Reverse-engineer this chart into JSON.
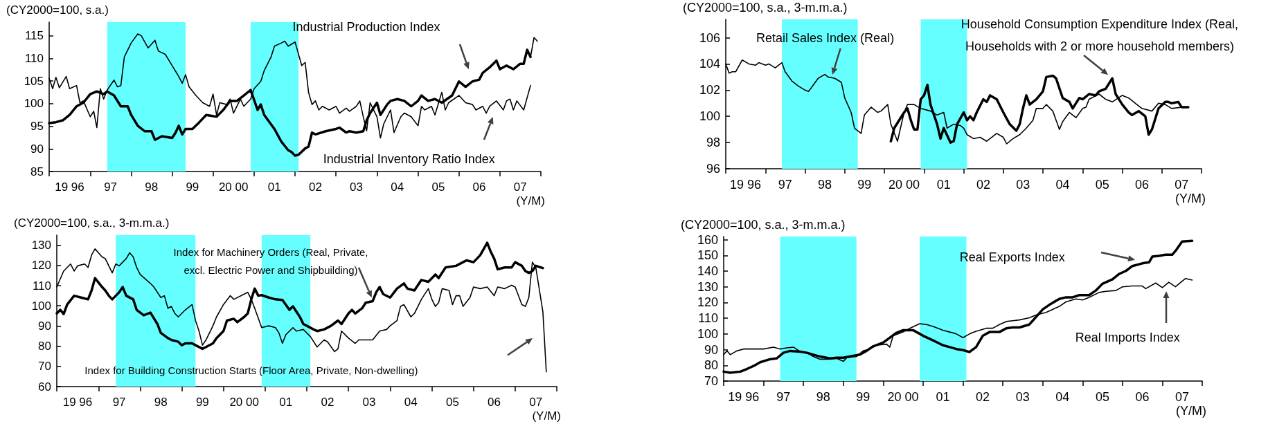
{
  "chart_data": [
    {
      "type": "line",
      "ylabel": "(CY2000=100, s.a.)",
      "xlabel": "(Y/M)",
      "xlim": [
        "1996-01",
        "2008-01"
      ],
      "ylim": [
        85,
        118
      ],
      "yticks": [
        85,
        90,
        95,
        100,
        105,
        110,
        115
      ],
      "xticks": [
        {
          "value": "1996-01",
          "label": null
        },
        {
          "value": "1996-07",
          "label": "19 96"
        },
        {
          "value": "1997-01",
          "label": null
        },
        {
          "value": "1997-07",
          "label": "97"
        },
        {
          "value": "1998-01",
          "label": null
        },
        {
          "value": "1998-07",
          "label": "98"
        },
        {
          "value": "1999-01",
          "label": null
        },
        {
          "value": "1999-07",
          "label": "99"
        },
        {
          "value": "2000-01",
          "label": null
        },
        {
          "value": "2000-07",
          "label": "20 00"
        },
        {
          "value": "2001-01",
          "label": null
        },
        {
          "value": "2001-07",
          "label": "01"
        },
        {
          "value": "2002-01",
          "label": null
        },
        {
          "value": "2002-07",
          "label": "02"
        },
        {
          "value": "2003-01",
          "label": null
        },
        {
          "value": "2003-07",
          "label": "03"
        },
        {
          "value": "2004-01",
          "label": null
        },
        {
          "value": "2004-07",
          "label": "04"
        },
        {
          "value": "2005-01",
          "label": null
        },
        {
          "value": "2005-07",
          "label": "05"
        },
        {
          "value": "2006-01",
          "label": null
        },
        {
          "value": "2006-07",
          "label": "06"
        },
        {
          "value": "2007-01",
          "label": null
        },
        {
          "value": "2007-07",
          "label": "07"
        },
        {
          "value": "2008-01",
          "label": null
        }
      ],
      "grid": false,
      "marker": "none",
      "line_style": "solid",
      "bands": [
        {
          "axis": "x",
          "from": "1997-06",
          "to": "1999-05",
          "color": "#66ffff"
        },
        {
          "axis": "x",
          "from": "2000-12",
          "to": "2002-02",
          "color": "#66ffff"
        }
      ],
      "annotations": [
        "Industrial Production Index",
        "Industrial Inventory Ratio Index"
      ],
      "series": [
        {
          "color": "#000000",
          "x": [
            "1996-01",
            "1996-03",
            "1996-05",
            "1996-07",
            "1996-09",
            "1996-11",
            "1997-01",
            "1997-03",
            "1997-05",
            "1997-06",
            "1997-08",
            "1997-10",
            "1997-12",
            "1998-01",
            "1998-03",
            "1998-05",
            "1998-07",
            "1998-08",
            "1998-10",
            "1999-01",
            "1999-02",
            "1999-03",
            "1999-04",
            "1999-05",
            "1999-07",
            "1999-09",
            "1999-11",
            "2000-02",
            "2000-04",
            "2000-06",
            "2000-08",
            "2000-10",
            "2000-12",
            "2001-02",
            "2001-03",
            "2001-04",
            "2001-07",
            "2001-09",
            "2001-11",
            "2001-12",
            "2002-01",
            "2002-02",
            "2002-04",
            "2002-05",
            "2002-06",
            "2002-07",
            "2002-10",
            "2003-01",
            "2003-02",
            "2003-04",
            "2003-05",
            "2003-07",
            "2003-09",
            "2003-10",
            "2003-11",
            "2004-01",
            "2004-02",
            "2004-04",
            "2004-05",
            "2004-07",
            "2004-09",
            "2004-11",
            "2005-01",
            "2005-02",
            "2005-04",
            "2005-06",
            "2005-08",
            "2005-11",
            "2006-01",
            "2006-03",
            "2006-05",
            "2006-07",
            "2006-08",
            "2006-10",
            "2006-12",
            "2007-01",
            "2007-03",
            "2007-05",
            "2007-07",
            "2007-08",
            "2007-09",
            "2007-10"
          ],
          "values": [
            95.7,
            95.9,
            96.3,
            97.5,
            99.4,
            100.2,
            102.1,
            102.7,
            102.1,
            102.7,
            101.8,
            99.4,
            99.4,
            97.5,
            95.1,
            93.9,
            93.9,
            92.0,
            92.8,
            92.4,
            93.6,
            95.1,
            93.2,
            94.4,
            94.4,
            95.9,
            97.5,
            97.1,
            98.6,
            100.6,
            100.6,
            101.8,
            103.0,
            98.6,
            99.8,
            97.5,
            94.4,
            91.6,
            89.7,
            89.3,
            88.5,
            88.7,
            90.1,
            90.5,
            93.6,
            93.2,
            93.9,
            94.4,
            94.7,
            93.6,
            93.9,
            93.6,
            93.9,
            96.3,
            97.9,
            100.2,
            97.5,
            99.8,
            100.6,
            101.0,
            100.6,
            99.4,
            100.6,
            101.8,
            100.6,
            101.0,
            100.2,
            101.8,
            104.9,
            103.7,
            104.9,
            105.3,
            106.8,
            108.0,
            109.5,
            107.6,
            108.4,
            107.6,
            108.8,
            108.8,
            111.9,
            110.3
          ]
        },
        {
          "color": "#000000",
          "x": [
            "1996-01",
            "1996-02",
            "1996-03",
            "1996-04",
            "1996-06",
            "1996-07",
            "1996-09",
            "1996-10",
            "1996-11",
            "1997-01",
            "1997-02",
            "1997-03",
            "1997-04",
            "1997-05",
            "1997-06",
            "1997-08",
            "1997-09",
            "1997-10",
            "1997-11",
            "1998-01",
            "1998-03",
            "1998-04",
            "1998-06",
            "1998-08",
            "1998-09",
            "1998-11",
            "1999-01",
            "1999-03",
            "1999-04",
            "1999-05",
            "1999-06",
            "1999-08",
            "1999-10",
            "1999-12",
            "2000-01",
            "2000-02",
            "2000-03",
            "2000-05",
            "2000-06",
            "2000-07",
            "2000-09",
            "2000-10",
            "2000-12",
            "2001-01",
            "2001-03",
            "2001-04",
            "2001-06",
            "2001-07",
            "2001-09",
            "2001-10",
            "2001-11",
            "2002-01",
            "2002-02",
            "2002-03",
            "2002-04",
            "2002-05",
            "2002-06",
            "2002-07",
            "2002-08",
            "2002-09",
            "2002-11",
            "2003-01",
            "2003-02",
            "2003-04",
            "2003-05",
            "2003-07",
            "2003-08",
            "2003-09",
            "2003-10",
            "2003-11",
            "2004-01",
            "2004-02",
            "2004-03",
            "2004-05",
            "2004-06",
            "2004-08",
            "2004-09",
            "2004-11",
            "2005-01",
            "2005-02",
            "2005-03",
            "2005-05",
            "2005-06",
            "2005-08",
            "2005-09",
            "2005-10",
            "2006-01",
            "2006-03",
            "2006-05",
            "2006-06",
            "2006-08",
            "2006-09",
            "2006-10",
            "2006-12",
            "2007-02",
            "2007-03",
            "2007-04",
            "2007-05",
            "2007-06",
            "2007-08",
            "2007-10"
          ],
          "values": [
            105.6,
            103.3,
            105.8,
            103.5,
            106.0,
            103.3,
            104.0,
            100.2,
            100.6,
            97.1,
            98.3,
            94.7,
            103.3,
            101.0,
            103.0,
            105.2,
            103.7,
            104.0,
            110.3,
            113.4,
            115.4,
            115.0,
            112.3,
            114.0,
            111.6,
            110.9,
            108.4,
            106.0,
            104.5,
            106.4,
            103.7,
            101.8,
            100.2,
            99.4,
            102.1,
            97.5,
            100.2,
            99.8,
            101.0,
            97.9,
            101.0,
            99.4,
            101.0,
            103.3,
            104.9,
            107.3,
            110.3,
            112.7,
            113.4,
            113.8,
            112.7,
            113.6,
            110.9,
            108.4,
            109.1,
            102.5,
            99.8,
            100.6,
            98.6,
            99.4,
            98.6,
            99.4,
            97.9,
            99.0,
            98.3,
            99.4,
            100.6,
            97.1,
            94.0,
            100.2,
            97.1,
            92.4,
            95.5,
            98.6,
            93.6,
            97.1,
            97.9,
            97.1,
            95.1,
            99.4,
            98.6,
            99.4,
            97.5,
            102.5,
            98.6,
            100.2,
            101.8,
            100.2,
            99.8,
            98.6,
            99.4,
            97.9,
            99.4,
            100.6,
            98.6,
            100.6,
            101.0,
            98.6,
            100.6,
            98.6,
            104.0
          ]
        },
        {
          "color": "#000000",
          "x": [
            "2007-10",
            "2007-11",
            "2007-12"
          ],
          "values": [
            110.3,
            114.6,
            113.8
          ]
        }
      ]
    },
    {
      "type": "line",
      "ylabel": "(CY2000=100, s.a., 3-m.m.a.)",
      "xlabel": "(Y/M)",
      "xlim": [
        "1996-01",
        "2008-01"
      ],
      "ylim": [
        96,
        107.4
      ],
      "yticks": [
        96,
        98,
        100,
        102,
        104,
        106
      ],
      "xticks": [
        {
          "value": "1996-01",
          "label": null
        },
        {
          "value": "1996-07",
          "label": "19 96"
        },
        {
          "value": "1997-01",
          "label": null
        },
        {
          "value": "1997-07",
          "label": "97"
        },
        {
          "value": "1998-01",
          "label": null
        },
        {
          "value": "1998-07",
          "label": "98"
        },
        {
          "value": "1999-01",
          "label": null
        },
        {
          "value": "1999-07",
          "label": "99"
        },
        {
          "value": "2000-01",
          "label": null
        },
        {
          "value": "2000-07",
          "label": "20 00"
        },
        {
          "value": "2001-01",
          "label": null
        },
        {
          "value": "2001-07",
          "label": "01"
        },
        {
          "value": "2002-01",
          "label": null
        },
        {
          "value": "2002-07",
          "label": "02"
        },
        {
          "value": "2003-01",
          "label": null
        },
        {
          "value": "2003-07",
          "label": "03"
        },
        {
          "value": "2004-01",
          "label": null
        },
        {
          "value": "2004-07",
          "label": "04"
        },
        {
          "value": "2005-01",
          "label": null
        },
        {
          "value": "2005-07",
          "label": "05"
        },
        {
          "value": "2006-01",
          "label": null
        },
        {
          "value": "2006-07",
          "label": "06"
        },
        {
          "value": "2007-01",
          "label": null
        },
        {
          "value": "2007-07",
          "label": "07"
        },
        {
          "value": "2008-01",
          "label": null
        }
      ],
      "grid": false,
      "marker": "none",
      "line_style": "solid",
      "bands": [
        {
          "axis": "x",
          "from": "1997-06",
          "to": "1999-05",
          "color": "#66ffff"
        },
        {
          "axis": "x",
          "from": "2000-12",
          "to": "2002-02",
          "color": "#66ffff"
        }
      ],
      "annotations": [
        "Retail Sales Index (Real)",
        "Household Consumption Expenditure Index (Real,\nHouseholds with 2 or more household members)"
      ],
      "series": [
        {
          "color": "#000000",
          "x": [
            "2000-03",
            "2000-04",
            "2000-07",
            "2000-08",
            "2000-09",
            "2000-10",
            "2000-11",
            "2000-12",
            "2001-01",
            "2001-02",
            "2001-03",
            "2001-05",
            "2001-06",
            "2001-07",
            "2001-09",
            "2001-10",
            "2001-11",
            "2002-01",
            "2002-02",
            "2002-03",
            "2002-04",
            "2002-05",
            "2002-07",
            "2002-08",
            "2002-09",
            "2002-11",
            "2003-01",
            "2003-03",
            "2003-05",
            "2003-06",
            "2003-07",
            "2003-08",
            "2003-09",
            "2003-11",
            "2004-01",
            "2004-02",
            "2004-04",
            "2004-05",
            "2004-07",
            "2004-09",
            "2004-10",
            "2004-12",
            "2005-01",
            "2005-03",
            "2005-05",
            "2005-06",
            "2005-08",
            "2005-10",
            "2005-11",
            "2006-01",
            "2006-03",
            "2006-04",
            "2006-06",
            "2006-08",
            "2006-09",
            "2006-10",
            "2006-12",
            "2007-02",
            "2007-03",
            "2007-04",
            "2007-06",
            "2007-07",
            "2007-09"
          ],
          "values": [
            98.1,
            99.1,
            100.3,
            100.6,
            99.7,
            99.0,
            99.0,
            101.3,
            101.6,
            102.4,
            100.9,
            99.4,
            98.3,
            99.1,
            98.0,
            98.1,
            99.4,
            100.3,
            99.7,
            100.0,
            99.7,
            100.3,
            101.3,
            101.1,
            101.6,
            101.3,
            100.3,
            99.4,
            98.9,
            99.4,
            100.6,
            101.6,
            100.9,
            101.3,
            101.9,
            103.0,
            103.1,
            102.9,
            101.4,
            101.1,
            100.6,
            101.4,
            101.3,
            101.7,
            101.6,
            101.9,
            102.1,
            102.9,
            101.7,
            100.9,
            100.3,
            100.1,
            100.4,
            100.0,
            98.6,
            99.0,
            100.6,
            101.1,
            101.1,
            101.0,
            101.1,
            100.7,
            100.7
          ]
        },
        {
          "color": "#000000",
          "x": [
            "1996-01",
            "1996-02",
            "1996-03",
            "1996-04",
            "1996-06",
            "1996-08",
            "1996-10",
            "1996-11",
            "1997-01",
            "1997-02",
            "1997-04",
            "1997-05",
            "1997-06",
            "1997-07",
            "1997-09",
            "1997-11",
            "1998-01",
            "1998-02",
            "1998-03",
            "1998-05",
            "1998-07",
            "1998-08",
            "1998-10",
            "1998-12",
            "1999-01",
            "1999-03",
            "1999-04",
            "1999-06",
            "1999-07",
            "1999-09",
            "1999-11",
            "1999-12",
            "2000-02",
            "2000-03",
            "2000-05",
            "2000-07",
            "2000-08",
            "2000-10",
            "2000-12",
            "2001-03",
            "2001-05",
            "2001-07",
            "2001-08",
            "2001-10",
            "2001-12",
            "2002-01",
            "2002-02",
            "2002-04",
            "2002-06",
            "2002-08",
            "2002-09",
            "2002-11",
            "2003-01",
            "2003-02",
            "2003-04",
            "2003-06",
            "2003-08",
            "2003-10",
            "2003-11",
            "2004-01",
            "2004-02",
            "2004-04",
            "2004-06",
            "2004-07",
            "2004-09",
            "2004-11",
            "2005-01",
            "2005-02",
            "2005-03",
            "2005-06",
            "2005-08",
            "2005-10",
            "2006-01",
            "2006-03",
            "2006-05",
            "2006-07",
            "2006-10",
            "2006-12",
            "2007-02",
            "2007-04",
            "2007-07",
            "2007-09"
          ],
          "values": [
            104.0,
            103.3,
            103.4,
            103.4,
            104.3,
            104.0,
            103.9,
            104.1,
            103.9,
            104.0,
            103.7,
            103.9,
            104.1,
            103.4,
            102.7,
            102.3,
            102.0,
            101.9,
            102.2,
            102.9,
            103.2,
            103.0,
            102.9,
            102.6,
            101.4,
            100.3,
            99.1,
            98.7,
            100.1,
            100.7,
            100.3,
            100.4,
            100.9,
            99.4,
            98.1,
            100.3,
            100.9,
            100.9,
            100.6,
            100.4,
            100.1,
            100.3,
            99.1,
            99.4,
            99.3,
            99.1,
            98.6,
            98.3,
            98.4,
            98.1,
            98.3,
            98.7,
            98.4,
            97.9,
            98.3,
            98.6,
            99.1,
            99.7,
            100.6,
            100.6,
            100.9,
            100.4,
            99.0,
            99.6,
            100.3,
            99.9,
            100.6,
            100.7,
            101.3,
            101.7,
            101.3,
            101.1,
            101.6,
            101.4,
            101.0,
            100.6,
            100.4,
            101.0,
            100.9,
            100.6,
            100.7,
            100.7
          ]
        }
      ]
    },
    {
      "type": "line",
      "ylabel": "(CY2000=100, s.a., 3-m.m.a.)",
      "xlabel": "(Y/M)",
      "xlim": [
        "1996-01",
        "2008-01"
      ],
      "ylim": [
        60,
        135
      ],
      "yticks": [
        60,
        70,
        80,
        90,
        100,
        110,
        120,
        130
      ],
      "xticks": [
        {
          "value": "1996-01",
          "label": null
        },
        {
          "value": "1996-07",
          "label": "19 96"
        },
        {
          "value": "1997-01",
          "label": null
        },
        {
          "value": "1997-07",
          "label": "97"
        },
        {
          "value": "1998-01",
          "label": null
        },
        {
          "value": "1998-07",
          "label": "98"
        },
        {
          "value": "1999-01",
          "label": null
        },
        {
          "value": "1999-07",
          "label": "99"
        },
        {
          "value": "2000-01",
          "label": null
        },
        {
          "value": "2000-07",
          "label": "20 00"
        },
        {
          "value": "2001-01",
          "label": null
        },
        {
          "value": "2001-07",
          "label": "01"
        },
        {
          "value": "2002-01",
          "label": null
        },
        {
          "value": "2002-07",
          "label": "02"
        },
        {
          "value": "2003-01",
          "label": null
        },
        {
          "value": "2003-07",
          "label": "03"
        },
        {
          "value": "2004-01",
          "label": null
        },
        {
          "value": "2004-07",
          "label": "04"
        },
        {
          "value": "2005-01",
          "label": null
        },
        {
          "value": "2005-07",
          "label": "05"
        },
        {
          "value": "2006-01",
          "label": null
        },
        {
          "value": "2006-07",
          "label": "06"
        },
        {
          "value": "2007-01",
          "label": null
        },
        {
          "value": "2007-07",
          "label": "07"
        },
        {
          "value": "2008-01",
          "label": null
        }
      ],
      "grid": false,
      "marker": "none",
      "line_style": "solid",
      "bands": [
        {
          "axis": "x",
          "from": "1997-06",
          "to": "1999-05",
          "color": "#66ffff"
        },
        {
          "axis": "x",
          "from": "2000-12",
          "to": "2002-02",
          "color": "#66ffff"
        }
      ],
      "annotations": [
        "Index for Machinery Orders (Real, Private,\nexcl. Electric Power and Shipbuilding)",
        "Index for Building Construction Starts (Floor Area, Private, Non-dwelling)"
      ],
      "series": [
        {
          "color": "#000000",
          "x": [
            "1996-01",
            "1996-02",
            "1996-03",
            "1996-04",
            "1996-06",
            "1996-08",
            "1996-10",
            "1996-11",
            "1996-12",
            "1997-02",
            "1997-03",
            "1997-04",
            "1997-05",
            "1997-07",
            "1997-08",
            "1997-09",
            "1997-11",
            "1997-12",
            "1998-02",
            "1998-04",
            "1998-06",
            "1998-07",
            "1998-09",
            "1998-10",
            "1998-12",
            "1999-01",
            "1999-02",
            "1999-04",
            "1999-05",
            "1999-07",
            "1999-08",
            "1999-10",
            "1999-11",
            "2000-01",
            "2000-02",
            "2000-04",
            "2000-05",
            "2000-07",
            "2000-08",
            "2000-09",
            "2000-10",
            "2000-11",
            "2000-12",
            "2001-02",
            "2001-04",
            "2001-06",
            "2001-08",
            "2001-09",
            "2001-11",
            "2001-12",
            "2002-01",
            "2002-03",
            "2002-04",
            "2002-06",
            "2002-08",
            "2002-10",
            "2002-11",
            "2003-01",
            "2003-02",
            "2003-03",
            "2003-05",
            "2003-06",
            "2003-08",
            "2003-09",
            "2003-10",
            "2003-11",
            "2004-01",
            "2004-03",
            "2004-05",
            "2004-06",
            "2004-08",
            "2004-10",
            "2004-12",
            "2005-02",
            "2005-03",
            "2005-05",
            "2005-08",
            "2005-10",
            "2005-11",
            "2006-01",
            "2006-02",
            "2006-03",
            "2006-05",
            "2006-06",
            "2006-07",
            "2006-08",
            "2006-10",
            "2006-12",
            "2007-01",
            "2007-03",
            "2007-04",
            "2007-05",
            "2007-06",
            "2007-07",
            "2007-09"
          ],
          "values": [
            96.2,
            98.0,
            95.9,
            100.6,
            105.0,
            104.1,
            103.2,
            107.6,
            113.7,
            109.3,
            107.6,
            105.0,
            103.2,
            106.7,
            109.3,
            105.0,
            103.2,
            98.0,
            95.3,
            96.6,
            91.0,
            86.6,
            84.0,
            83.1,
            82.2,
            80.5,
            81.4,
            81.4,
            80.5,
            78.7,
            79.6,
            81.4,
            84.0,
            87.5,
            92.7,
            93.6,
            91.9,
            94.5,
            96.2,
            103.2,
            108.5,
            105.0,
            105.3,
            104.1,
            103.2,
            102.9,
            98.0,
            99.7,
            94.5,
            91.0,
            90.1,
            88.3,
            87.5,
            88.3,
            90.1,
            92.7,
            91.0,
            96.2,
            98.0,
            96.2,
            98.8,
            101.5,
            102.3,
            106.7,
            109.3,
            105.8,
            104.1,
            108.5,
            111.1,
            108.5,
            107.6,
            112.8,
            111.9,
            115.5,
            113.7,
            119.0,
            119.8,
            121.6,
            122.5,
            121.6,
            123.4,
            125.1,
            131.2,
            126.8,
            123.4,
            118.1,
            119.0,
            119.0,
            121.6,
            119.8,
            117.2,
            116.3,
            117.2,
            119.8,
            118.7
          ]
        },
        {
          "color": "#000000",
          "x": [
            "1996-01",
            "1996-03",
            "1996-05",
            "1996-06",
            "1996-07",
            "1996-09",
            "1996-10",
            "1996-11",
            "1996-12",
            "1997-02",
            "1997-03",
            "1997-04",
            "1997-05",
            "1997-06",
            "1997-07",
            "1997-09",
            "1997-10",
            "1997-11",
            "1997-12",
            "1998-01",
            "1998-04",
            "1998-05",
            "1998-07",
            "1998-08",
            "1998-09",
            "1998-10",
            "1998-11",
            "1998-12",
            "1999-02",
            "1999-04",
            "1999-05",
            "1999-06",
            "1999-07",
            "1999-08",
            "1999-10",
            "1999-11",
            "2000-01",
            "2000-03",
            "2000-04",
            "2000-07",
            "2000-08",
            "2000-09",
            "2000-10",
            "2000-12",
            "2001-02",
            "2001-04",
            "2001-05",
            "2001-06",
            "2001-07",
            "2001-09",
            "2001-10",
            "2001-12",
            "2002-02",
            "2002-04",
            "2002-06",
            "2002-07",
            "2002-09",
            "2002-10",
            "2002-11",
            "2003-01",
            "2003-03",
            "2003-04",
            "2003-05",
            "2003-07",
            "2003-08",
            "2003-10",
            "2003-12",
            "2004-01",
            "2004-03",
            "2004-04",
            "2004-05",
            "2004-07",
            "2004-08",
            "2004-10",
            "2004-12",
            "2005-01",
            "2005-02",
            "2005-03",
            "2005-04",
            "2005-06",
            "2005-07",
            "2005-08",
            "2005-09",
            "2005-10",
            "2005-12",
            "2006-01",
            "2006-03",
            "2006-05",
            "2006-07",
            "2006-08",
            "2006-10",
            "2006-12",
            "2007-01",
            "2007-03",
            "2007-04",
            "2007-05",
            "2007-06",
            "2007-07",
            "2007-09",
            "2007-10"
          ],
          "values": [
            109.3,
            117.2,
            120.7,
            117.2,
            119.8,
            120.7,
            119.0,
            125.1,
            128.2,
            124.2,
            123.4,
            119.8,
            116.3,
            120.7,
            119.8,
            123.4,
            126.3,
            124.2,
            119.0,
            115.5,
            111.1,
            109.3,
            104.1,
            105.0,
            98.8,
            99.7,
            96.2,
            94.5,
            98.0,
            100.6,
            92.7,
            87.5,
            80.5,
            83.1,
            90.1,
            94.5,
            100.6,
            105.0,
            103.2,
            105.8,
            106.7,
            103.2,
            98.8,
            89.2,
            90.1,
            89.2,
            86.6,
            81.4,
            85.7,
            89.2,
            87.5,
            88.3,
            84.8,
            79.6,
            83.1,
            82.2,
            77.3,
            78.7,
            87.5,
            84.0,
            81.4,
            83.1,
            83.1,
            83.1,
            83.1,
            87.5,
            88.3,
            90.1,
            92.7,
            99.7,
            100.6,
            94.5,
            96.2,
            103.2,
            108.5,
            103.2,
            99.7,
            101.5,
            108.5,
            107.6,
            100.6,
            105.0,
            105.0,
            99.7,
            104.1,
            109.3,
            108.5,
            109.3,
            105.0,
            109.3,
            108.5,
            110.2,
            109.3,
            100.6,
            99.7,
            104.1,
            121.6,
            119.0,
            97.1,
            67.3
          ]
        }
      ]
    },
    {
      "type": "line",
      "ylabel": "(CY2000=100, s.a., 3-m.m.a.)",
      "xlabel": "(Y/M)",
      "xlim": [
        "1996-01",
        "2008-01"
      ],
      "ylim": [
        70,
        162
      ],
      "yticks": [
        70,
        80,
        90,
        100,
        110,
        120,
        130,
        140,
        150,
        160
      ],
      "xticks": [
        {
          "value": "1996-01",
          "label": null
        },
        {
          "value": "1996-07",
          "label": "19 96"
        },
        {
          "value": "1997-01",
          "label": null
        },
        {
          "value": "1997-07",
          "label": "97"
        },
        {
          "value": "1998-01",
          "label": null
        },
        {
          "value": "1998-07",
          "label": "98"
        },
        {
          "value": "1999-01",
          "label": null
        },
        {
          "value": "1999-07",
          "label": "99"
        },
        {
          "value": "2000-01",
          "label": null
        },
        {
          "value": "2000-07",
          "label": "20 00"
        },
        {
          "value": "2001-01",
          "label": null
        },
        {
          "value": "2001-07",
          "label": "01"
        },
        {
          "value": "2002-01",
          "label": null
        },
        {
          "value": "2002-07",
          "label": "02"
        },
        {
          "value": "2003-01",
          "label": null
        },
        {
          "value": "2003-07",
          "label": "03"
        },
        {
          "value": "2004-01",
          "label": null
        },
        {
          "value": "2004-07",
          "label": "04"
        },
        {
          "value": "2005-01",
          "label": null
        },
        {
          "value": "2005-07",
          "label": "05"
        },
        {
          "value": "2006-01",
          "label": null
        },
        {
          "value": "2006-07",
          "label": "06"
        },
        {
          "value": "2007-01",
          "label": null
        },
        {
          "value": "2007-07",
          "label": "07"
        },
        {
          "value": "2008-01",
          "label": null
        }
      ],
      "grid": false,
      "marker": "none",
      "line_style": "solid",
      "bands": [
        {
          "axis": "x",
          "from": "1997-06",
          "to": "1999-05",
          "color": "#66ffff"
        },
        {
          "axis": "x",
          "from": "2000-12",
          "to": "2002-02",
          "color": "#66ffff"
        }
      ],
      "annotations": [
        "Real Exports Index",
        "Real Imports Index"
      ],
      "series": [
        {
          "color": "#000000",
          "x": [
            "1996-01",
            "1996-03",
            "1996-06",
            "1996-08",
            "1996-10",
            "1996-12",
            "1997-03",
            "1997-05",
            "1997-07",
            "1997-09",
            "1997-12",
            "1998-02",
            "1998-04",
            "1998-06",
            "1998-09",
            "1998-11",
            "1999-01",
            "1999-03",
            "1999-06",
            "1999-08",
            "1999-10",
            "2000-01",
            "2000-03",
            "2000-05",
            "2000-07",
            "2000-10",
            "2000-11",
            "2001-01",
            "2001-04",
            "2001-07",
            "2001-09",
            "2001-11",
            "2002-01",
            "2002-03",
            "2002-05",
            "2002-07",
            "2002-09",
            "2002-12",
            "2003-02",
            "2003-04",
            "2003-06",
            "2003-09",
            "2003-11",
            "2004-01",
            "2004-03",
            "2004-06",
            "2004-08",
            "2004-10",
            "2004-12",
            "2005-03",
            "2005-05",
            "2005-07",
            "2005-10",
            "2005-12",
            "2006-02",
            "2006-04",
            "2006-07",
            "2006-09",
            "2006-10",
            "2006-12",
            "2007-02",
            "2007-04",
            "2007-05",
            "2007-07",
            "2007-10"
          ],
          "values": [
            76.0,
            75.3,
            76.0,
            77.7,
            79.6,
            82.0,
            83.9,
            84.4,
            88.0,
            89.2,
            88.7,
            88.0,
            86.8,
            85.6,
            84.4,
            84.9,
            84.9,
            85.6,
            86.8,
            89.2,
            92.1,
            94.5,
            97.6,
            100.7,
            102.4,
            102.4,
            101.2,
            98.8,
            95.9,
            92.8,
            91.6,
            90.4,
            89.7,
            88.5,
            91.6,
            98.8,
            101.2,
            101.2,
            103.6,
            104.1,
            104.1,
            106.0,
            110.8,
            115.6,
            118.5,
            122.3,
            123.3,
            123.3,
            124.7,
            124.7,
            127.6,
            131.9,
            134.8,
            138.2,
            140.1,
            143.2,
            144.9,
            145.6,
            149.2,
            149.7,
            150.4,
            150.4,
            152.8,
            158.8,
            159.3
          ]
        },
        {
          "color": "#000000",
          "x": [
            "1996-01",
            "1996-02",
            "1996-03",
            "1996-05",
            "1996-07",
            "1996-10",
            "1997-01",
            "1997-04",
            "1997-06",
            "1997-08",
            "1997-10",
            "1997-12",
            "1998-02",
            "1998-04",
            "1998-06",
            "1998-09",
            "1998-11",
            "1999-01",
            "1999-02",
            "1999-05",
            "1999-07",
            "1999-09",
            "1999-11",
            "2000-02",
            "2000-03",
            "2000-04",
            "2000-07",
            "2000-09",
            "2000-12",
            "2001-02",
            "2001-04",
            "2001-07",
            "2001-09",
            "2001-11",
            "2002-01",
            "2002-03",
            "2002-05",
            "2002-08",
            "2002-10",
            "2002-12",
            "2003-02",
            "2003-04",
            "2003-06",
            "2003-09",
            "2003-11",
            "2004-02",
            "2004-04",
            "2004-06",
            "2004-08",
            "2004-11",
            "2005-01",
            "2005-03",
            "2005-06",
            "2005-08",
            "2005-11",
            "2006-01",
            "2006-04",
            "2006-07",
            "2006-08",
            "2006-11",
            "2007-01",
            "2007-03",
            "2007-05",
            "2007-08",
            "2007-10"
          ],
          "values": [
            86.8,
            89.2,
            86.8,
            89.2,
            90.4,
            90.4,
            90.4,
            91.6,
            90.4,
            91.1,
            91.6,
            88.7,
            88.0,
            85.6,
            83.9,
            83.9,
            84.4,
            82.5,
            84.9,
            85.6,
            89.2,
            90.4,
            92.8,
            93.5,
            91.6,
            98.8,
            101.2,
            103.6,
            106.5,
            106.0,
            104.8,
            102.4,
            101.2,
            100.0,
            97.6,
            100.0,
            101.7,
            103.6,
            103.6,
            106.0,
            107.9,
            108.4,
            108.9,
            110.3,
            112.0,
            113.7,
            115.6,
            117.5,
            120.4,
            122.3,
            121.6,
            123.3,
            126.4,
            127.1,
            127.6,
            130.0,
            130.5,
            130.5,
            128.8,
            132.4,
            129.5,
            132.9,
            130.0,
            135.3,
            134.3
          ]
        }
      ]
    }
  ]
}
